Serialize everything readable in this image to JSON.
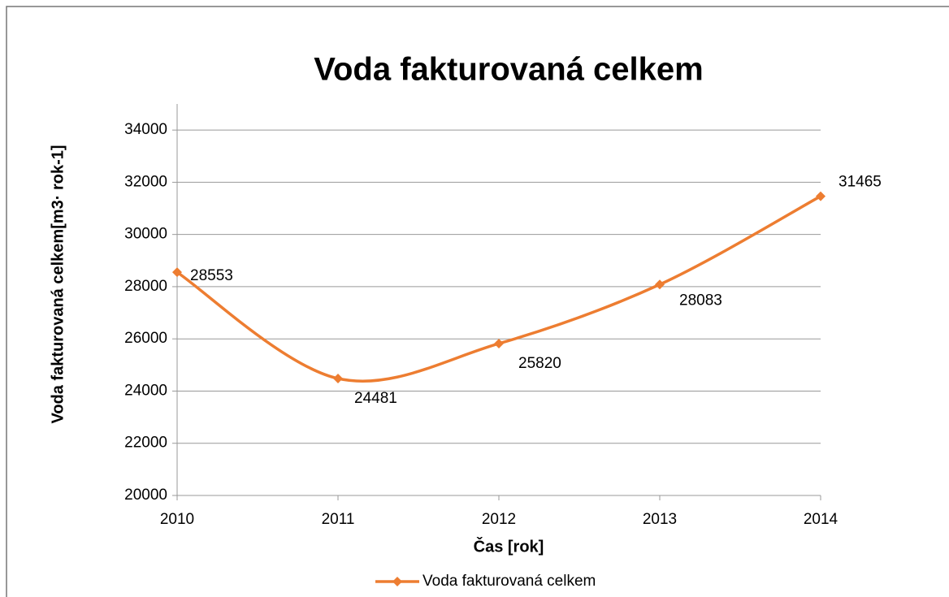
{
  "chart_data": {
    "type": "line",
    "title": "Voda fakturovaná celkem",
    "x_label": "Čas [rok]",
    "y_label": "Voda fakturovaná celkem[m3· rok-1]",
    "categories": [
      "2010",
      "2011",
      "2012",
      "2013",
      "2014"
    ],
    "series": [
      {
        "name": "Voda fakturovaná celkem",
        "color": "#ed7d31",
        "values": [
          28553,
          24481,
          25820,
          28083,
          31465
        ]
      }
    ],
    "ylim": [
      20000,
      35000
    ],
    "yticks": [
      20000,
      22000,
      24000,
      26000,
      28000,
      30000,
      32000,
      34000
    ],
    "grid": true,
    "smooth": true,
    "data_labels": true,
    "legend": "bottom"
  }
}
